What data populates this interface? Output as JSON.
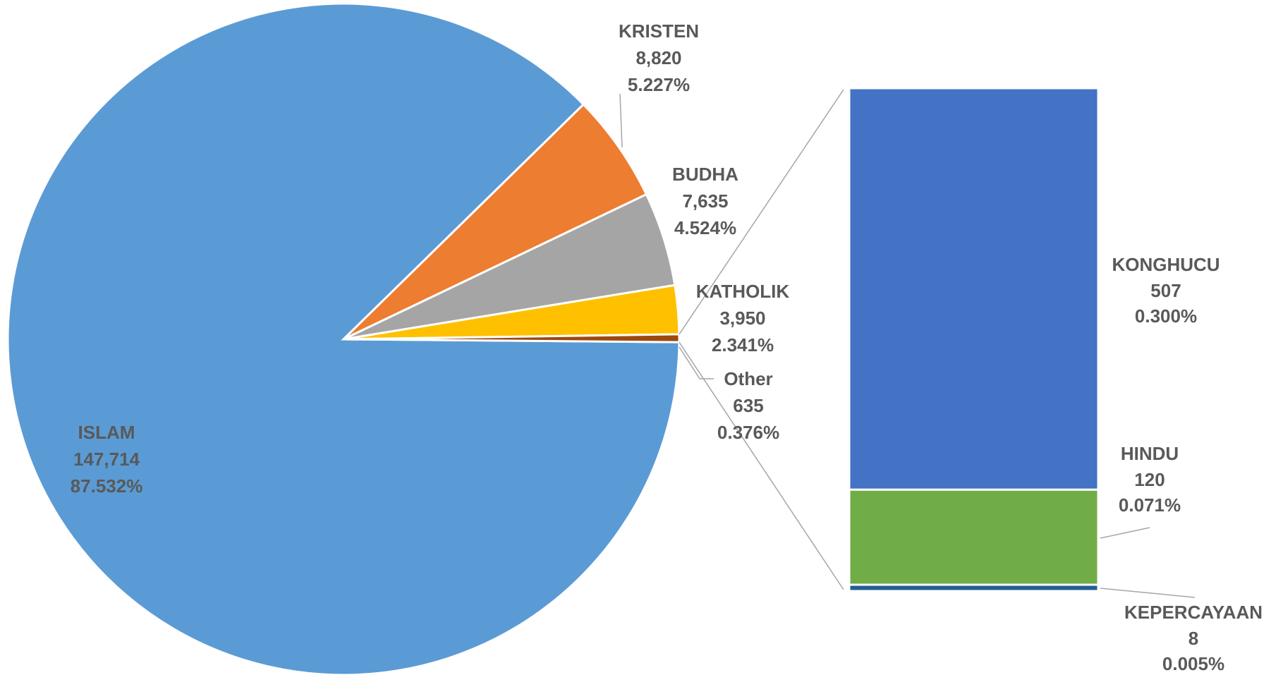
{
  "chart_data": {
    "type": "pie-of-bar",
    "series": [
      {
        "name": "pie",
        "categories": [
          "ISLAM",
          "KRISTEN",
          "BUDHA",
          "KATHOLIK",
          "Other"
        ],
        "values": [
          147714,
          8820,
          7635,
          3950,
          635
        ],
        "value_labels": [
          "147,714",
          "8,820",
          "7,635",
          "3,950",
          "635"
        ],
        "percents": [
          87.532,
          5.227,
          4.524,
          2.341,
          0.376
        ],
        "percent_labels": [
          "87.532%",
          "5.227%",
          "4.524%",
          "2.341%",
          "0.376%"
        ],
        "colors": [
          "#5b9bd5",
          "#ed7d31",
          "#a5a5a5",
          "#ffc000",
          "#9e480e"
        ]
      },
      {
        "name": "bar",
        "categories": [
          "KONGHUCU",
          "HINDU",
          "KEPERCAYAAN"
        ],
        "values": [
          507,
          120,
          8
        ],
        "percents": [
          0.3,
          0.071,
          0.005
        ],
        "percent_labels": [
          "0.300%",
          "0.071%",
          "0.005%"
        ],
        "colors": [
          "#4472c4",
          "#70ad47",
          "#255e91"
        ]
      }
    ]
  }
}
